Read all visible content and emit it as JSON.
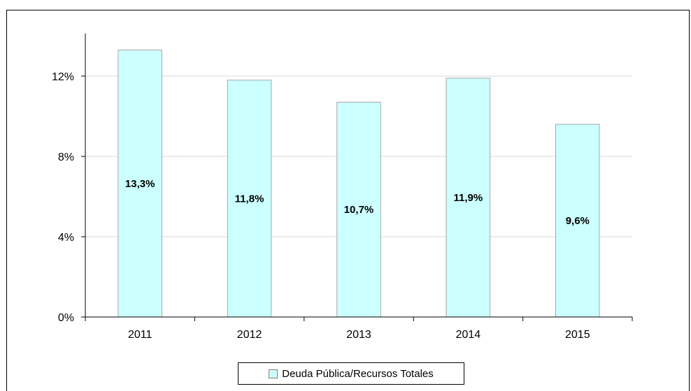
{
  "chart_data": {
    "type": "bar",
    "categories": [
      "2011",
      "2012",
      "2013",
      "2014",
      "2015"
    ],
    "series": [
      {
        "name": "Deuda Pública/Recursos Totales",
        "values": [
          13.3,
          11.8,
          10.7,
          11.9,
          9.6
        ],
        "labels": [
          "13,3%",
          "11,8%",
          "10,7%",
          "11,9%",
          "9,6%"
        ]
      }
    ],
    "y_ticks": [
      {
        "value": 0,
        "label": "0%"
      },
      {
        "value": 4,
        "label": "4%"
      },
      {
        "value": 8,
        "label": "8%"
      },
      {
        "value": 12,
        "label": "12%"
      }
    ],
    "ylim": [
      0,
      14
    ],
    "grid": true,
    "legend_position": "bottom",
    "colors": {
      "bar_fill": "#ccffff",
      "bar_border": "#a6a6a6",
      "grid": "#d9d9d9",
      "axis": "#000000"
    }
  }
}
